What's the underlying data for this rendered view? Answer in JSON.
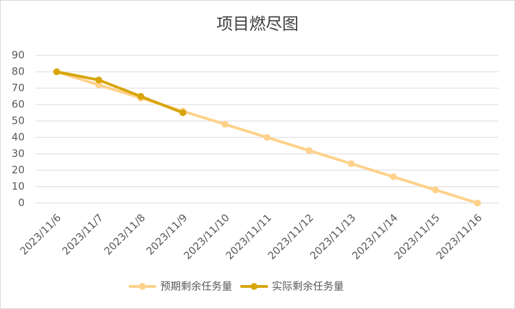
{
  "chart_data": {
    "type": "line",
    "title": "项目燃尽图",
    "categories": [
      "2023/11/6",
      "2023/11/7",
      "2023/11/8",
      "2023/11/9",
      "2023/11/10",
      "2023/11/11",
      "2023/11/12",
      "2023/11/13",
      "2023/11/14",
      "2023/11/15",
      "2023/11/16"
    ],
    "series": [
      {
        "name": "预期剩余任务量",
        "color": "#FFD18A",
        "values": [
          80,
          72,
          64,
          56,
          48,
          40,
          32,
          24,
          16,
          8,
          0
        ]
      },
      {
        "name": "实际剩余任务量",
        "color": "#D8A50A",
        "values": [
          80,
          75,
          65,
          55,
          null,
          null,
          null,
          null,
          null,
          null,
          null
        ]
      }
    ],
    "ylim": [
      0,
      90
    ],
    "yticks": [
      0,
      10,
      20,
      30,
      40,
      50,
      60,
      70,
      80,
      90
    ],
    "grid": true,
    "legend": "bottom"
  }
}
